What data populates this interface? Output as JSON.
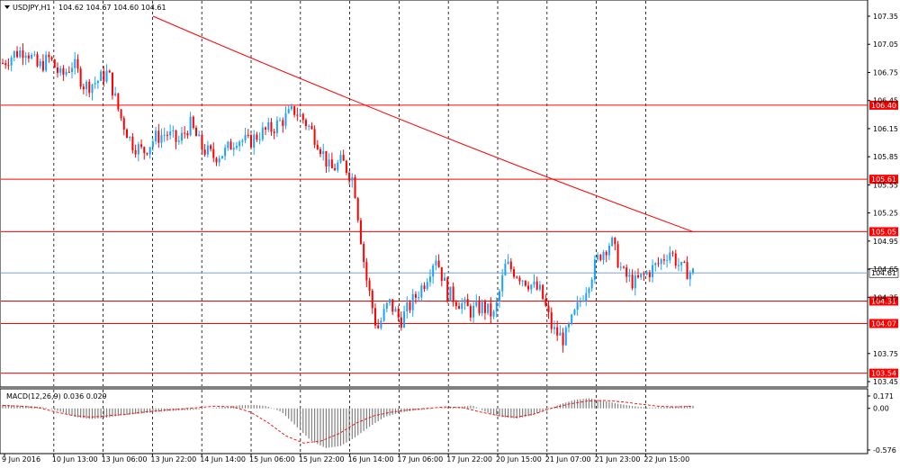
{
  "chart_data": [
    {
      "type": "candlestick",
      "title": "USDJPY,H1  104.62 104.67 104.60 104.61",
      "header": {
        "symbol": "USDJPY,H1",
        "ohlc": "104.62 104.67 104.60 104.61"
      },
      "ylim": [
        103.45,
        107.35
      ],
      "y_ticks": [
        "107.35",
        "107.05",
        "106.75",
        "106.45",
        "106.15",
        "105.85",
        "105.55",
        "105.25",
        "104.95",
        "104.65",
        "104.35",
        "103.75",
        "103.45"
      ],
      "x_ticks": [
        "9 Jun 2016",
        "10 Jun 13:00",
        "13 Jun 06:00",
        "13 Jun 22:00",
        "14 Jun 14:00",
        "15 Jun 06:00",
        "15 Jun 22:00",
        "16 Jun 14:00",
        "17 Jun 06:00",
        "17 Jun 22:00",
        "20 Jun 15:00",
        "21 Jun 07:00",
        "21 Jun 23:00",
        "22 Jun 15:00"
      ],
      "grid": "vertical dashed",
      "current_price": {
        "value": 104.61,
        "label": "104.61"
      },
      "levels": [
        {
          "value": 106.4,
          "label": "106.40"
        },
        {
          "value": 105.61,
          "label": "105.61"
        },
        {
          "value": 105.05,
          "label": "105.05"
        },
        {
          "value": 104.31,
          "label": "104.31"
        },
        {
          "value": 104.07,
          "label": "104.07"
        },
        {
          "value": 103.54,
          "label": "103.54"
        }
      ],
      "moving_average": {
        "start": 107.35,
        "end": 105.05
      },
      "price_path": [
        106.85,
        106.95,
        107.0,
        106.8,
        106.9,
        106.7,
        106.85,
        106.6,
        106.65,
        106.75,
        106.3,
        106.0,
        105.9,
        106.05,
        106.1,
        106.0,
        106.2,
        105.95,
        105.85,
        105.9,
        106.05,
        106.0,
        106.1,
        106.15,
        106.25,
        106.35,
        106.2,
        106.0,
        105.7,
        105.8,
        105.6,
        104.6,
        104.0,
        104.3,
        104.1,
        104.3,
        104.5,
        104.8,
        104.4,
        104.3,
        104.2,
        104.25,
        104.15,
        104.7,
        104.6,
        104.5,
        104.4,
        104.0,
        103.9,
        104.2,
        104.5,
        104.8,
        104.95,
        104.6,
        104.5,
        104.6,
        104.7,
        104.85,
        104.65,
        104.61
      ]
    },
    {
      "type": "histogram",
      "title": "MACD(12,26,9) 0.036 0.029",
      "ylim": [
        -0.576,
        0.171
      ],
      "y_ticks": [
        "0.171",
        "0.00",
        "-0.576"
      ],
      "zero_line": 0.0,
      "histogram": [
        0.05,
        0.04,
        0.03,
        0.01,
        -0.05,
        -0.12,
        -0.15,
        -0.13,
        -0.1,
        -0.08,
        -0.06,
        -0.04,
        -0.03,
        -0.02,
        0.0,
        0.02,
        0.04,
        0.05,
        0.03,
        -0.05,
        -0.25,
        -0.45,
        -0.55,
        -0.52,
        -0.4,
        -0.25,
        -0.12,
        -0.06,
        -0.03,
        -0.01,
        0.01,
        0.02,
        0.04,
        -0.06,
        -0.12,
        -0.14,
        -0.1,
        -0.02,
        0.06,
        0.12,
        0.14,
        0.1,
        0.06,
        0.03,
        0.01,
        0.02,
        0.03,
        0.036
      ],
      "signal": [
        0.04,
        0.03,
        0.01,
        -0.05,
        -0.1,
        -0.12,
        -0.1,
        -0.08,
        -0.05,
        -0.03,
        -0.01,
        0.01,
        0.03,
        0.02,
        -0.05,
        -0.2,
        -0.38,
        -0.48,
        -0.45,
        -0.35,
        -0.2,
        -0.1,
        -0.05,
        -0.02,
        0.0,
        0.02,
        0.01,
        -0.05,
        -0.1,
        -0.12,
        -0.08,
        0.0,
        0.06,
        0.1,
        0.11,
        0.09,
        0.06,
        0.03,
        0.02,
        0.029
      ]
    }
  ],
  "colors": {
    "bull": "#19a3ff",
    "bear": "#ff0000",
    "level": "#ff0000",
    "ma": "#ff0000",
    "current_line": "#7fa3c8",
    "grid": "#000000",
    "macd_hist": "#808080",
    "macd_signal": "#ff0000",
    "label_bg": "#ff0000",
    "current_label_bg": "#ffffff"
  },
  "icons": {
    "symbol_dropdown": "triangle-down-icon"
  }
}
